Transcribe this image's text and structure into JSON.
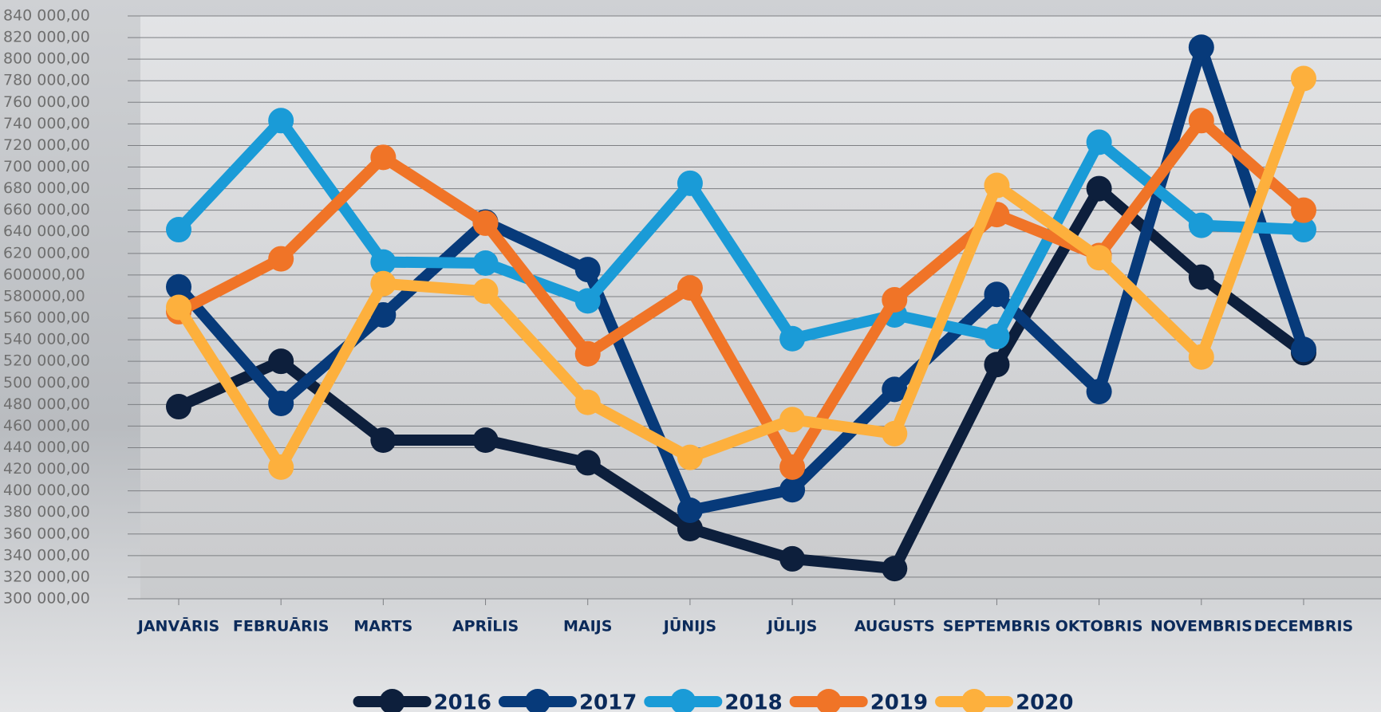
{
  "chart_data": {
    "type": "line",
    "categories": [
      "JANVĀRIS",
      "FEBRUĀRIS",
      "MARTS",
      "APRĪLIS",
      "MAIJS",
      "JŪNIJS",
      "JŪLIJS",
      "AUGUSTS",
      "SEPTEMBRIS",
      "OKTOBRIS",
      "NOVEMBRIS",
      "DECEMBRIS"
    ],
    "series": [
      {
        "name": "2016",
        "color": "#0d1f3c",
        "values": [
          478000,
          520000,
          447000,
          447000,
          426000,
          365000,
          337000,
          328000,
          517000,
          680000,
          598000,
          528000
        ]
      },
      {
        "name": "2017",
        "color": "#073a7a",
        "values": [
          589000,
          481000,
          563000,
          649000,
          605000,
          382000,
          401000,
          494000,
          582000,
          492000,
          811000,
          531000
        ]
      },
      {
        "name": "2018",
        "color": "#1a9bd7",
        "values": [
          642000,
          743000,
          612000,
          611000,
          576000,
          685000,
          541000,
          563000,
          543000,
          723000,
          646000,
          642000
        ]
      },
      {
        "name": "2019",
        "color": "#f07427",
        "values": [
          566000,
          615000,
          709000,
          648000,
          527000,
          588000,
          422000,
          577000,
          656000,
          618000,
          743000,
          660000
        ]
      },
      {
        "name": "2020",
        "color": "#fdb03d",
        "values": [
          570000,
          422000,
          592000,
          585000,
          482000,
          431000,
          466000,
          453000,
          683000,
          616000,
          524000,
          782000
        ]
      }
    ],
    "ylim": [
      300000,
      840000
    ],
    "yticks": [
      {
        "value": 300000,
        "label": "300 000,00"
      },
      {
        "value": 320000,
        "label": "320 000,00"
      },
      {
        "value": 340000,
        "label": "340 000,00"
      },
      {
        "value": 360000,
        "label": "360 000,00"
      },
      {
        "value": 380000,
        "label": "380 000,00"
      },
      {
        "value": 400000,
        "label": "400 000,00"
      },
      {
        "value": 420000,
        "label": "420 000,00"
      },
      {
        "value": 440000,
        "label": "440 000,00"
      },
      {
        "value": 460000,
        "label": "460 000,00"
      },
      {
        "value": 480000,
        "label": "480 000,00"
      },
      {
        "value": 500000,
        "label": "500 000,00"
      },
      {
        "value": 520000,
        "label": "520 000,00"
      },
      {
        "value": 540000,
        "label": "540 000,00"
      },
      {
        "value": 560000,
        "label": "560 000,00"
      },
      {
        "value": 580000,
        "label": "580000,00"
      },
      {
        "value": 600000,
        "label": "600000,00"
      },
      {
        "value": 620000,
        "label": "620 000,00"
      },
      {
        "value": 640000,
        "label": "640 000,00"
      },
      {
        "value": 660000,
        "label": "660 000,00"
      },
      {
        "value": 680000,
        "label": "680 000,00"
      },
      {
        "value": 700000,
        "label": "700 000,00"
      },
      {
        "value": 720000,
        "label": "720 000,00"
      },
      {
        "value": 740000,
        "label": "740 000,00"
      },
      {
        "value": 760000,
        "label": "760 000,00"
      },
      {
        "value": 780000,
        "label": "780 000,00"
      },
      {
        "value": 800000,
        "label": "800 000,00"
      },
      {
        "value": 820000,
        "label": "820 000,00"
      },
      {
        "value": 840000,
        "label": "840 000,00"
      }
    ],
    "grid": true,
    "legend": "bottom"
  }
}
